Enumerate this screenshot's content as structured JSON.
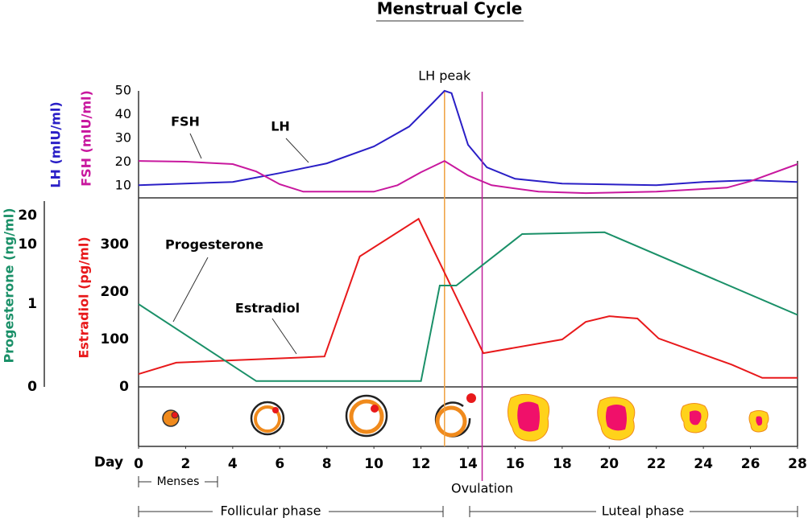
{
  "title": "Menstrual Cycle",
  "chart_data": [
    {
      "type": "line",
      "xlim": [
        0,
        28
      ],
      "ylim": [
        5,
        53
      ],
      "yticks": [
        10,
        20,
        30,
        40,
        50
      ],
      "annotation": {
        "text": "LH peak",
        "x": 13,
        "color": "#f0a040"
      },
      "series": [
        {
          "name": "LH",
          "axis_label": "LH (mIU/ml)",
          "color": "#2a1fc6",
          "x": [
            0,
            4,
            6,
            8,
            10,
            11.5,
            12.5,
            13,
            13.3,
            14,
            14.8,
            16,
            18,
            22,
            24,
            26,
            28
          ],
          "values": [
            10.3,
            11.7,
            15.4,
            19.5,
            26.6,
            35,
            44.9,
            50,
            49,
            27.3,
            17.8,
            13,
            11,
            10.3,
            11.7,
            12.4,
            11.7
          ]
        },
        {
          "name": "FSH",
          "axis_label": "FSH (mIU/ml)",
          "color": "#c8189e",
          "x": [
            0,
            2,
            4,
            5,
            6,
            7,
            10,
            11,
            12,
            13,
            14,
            15,
            17,
            19,
            22,
            25,
            26,
            28
          ],
          "values": [
            20.5,
            20.2,
            19.2,
            16.1,
            10.7,
            7.6,
            7.6,
            10.3,
            15.8,
            20.5,
            14.4,
            10.3,
            7.6,
            7,
            7.6,
            9.3,
            12,
            19.2
          ]
        }
      ]
    },
    {
      "type": "line",
      "xlim": [
        0,
        28
      ],
      "xticks": [
        0,
        2,
        4,
        6,
        8,
        10,
        12,
        14,
        16,
        18,
        20,
        22,
        24,
        26,
        28
      ],
      "xlabel": "Day",
      "ylim": [
        0,
        400
      ],
      "yticks": [
        0,
        100,
        200,
        300
      ],
      "y2lim": [
        0,
        20
      ],
      "y2ticks": [
        0,
        1,
        10,
        20
      ],
      "annotation": {
        "text": "Ovulation",
        "x": 14.6,
        "color": "#c0209a"
      },
      "series": [
        {
          "name": "Estradiol",
          "axis_label": "Estradiol (pg/ml)",
          "color": "#e8191b",
          "x": [
            0,
            1.6,
            7.9,
            9.4,
            11.9,
            14.65,
            18,
            19,
            20,
            21.2,
            22.1,
            25.2,
            26.5,
            28
          ],
          "values": [
            27,
            51,
            64,
            275,
            354,
            71,
            100,
            137,
            149,
            144,
            102,
            47,
            19,
            19
          ]
        },
        {
          "name": "Progesterone",
          "axis_label": "Progesterone (ng/ml)",
          "color": "#1a9068",
          "axis": "y2",
          "x": [
            0,
            5,
            12,
            12.8,
            13.5,
            16.3,
            19.8,
            28
          ],
          "values": [
            1,
            0.07,
            0.07,
            3.8,
            3.8,
            13.6,
            14.2,
            0.87
          ]
        }
      ]
    }
  ],
  "phases": {
    "menses": "Menses",
    "follicular": "Follicular phase",
    "luteal": "Luteal phase"
  }
}
